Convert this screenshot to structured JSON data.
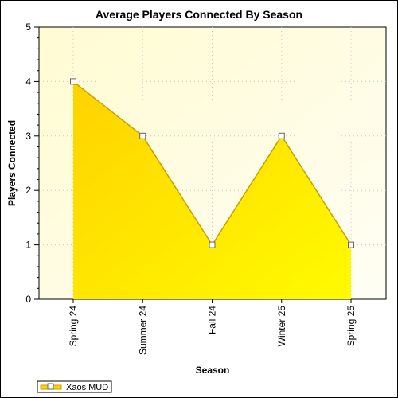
{
  "chart_data": {
    "type": "area",
    "title": "Average Players Connected By Season",
    "xlabel": "Season",
    "ylabel": "Players Connected",
    "categories": [
      "Spring 24",
      "Summer 24",
      "Fall 24",
      "Winter 25",
      "Spring 25"
    ],
    "series": [
      {
        "name": "Xaos MUD",
        "values": [
          4,
          3,
          1,
          3,
          1
        ],
        "color": "#ffd400",
        "line_color": "#c8a000"
      }
    ],
    "ylim": [
      0,
      5
    ],
    "yticks": [
      0,
      1,
      2,
      3,
      4,
      5
    ],
    "grid": true,
    "legend": "bottom-left",
    "plot_background": "#fffbd2"
  }
}
